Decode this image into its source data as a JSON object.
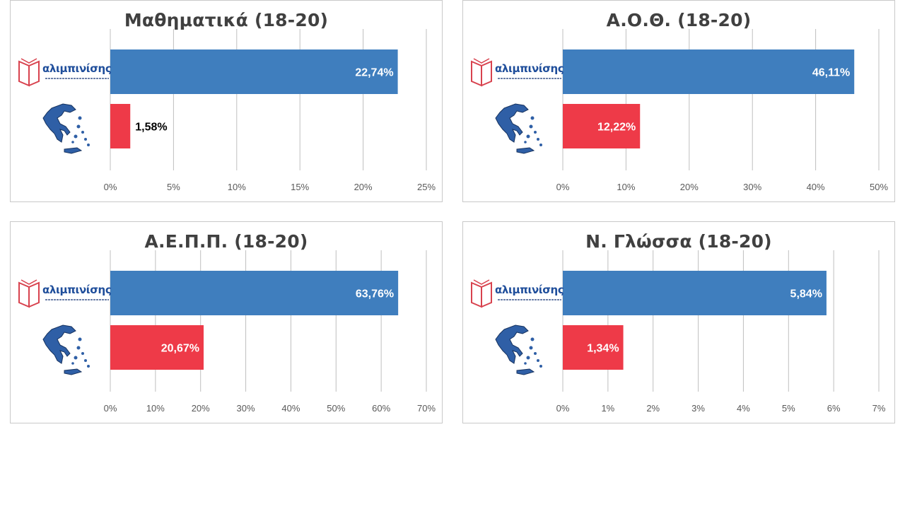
{
  "colors": {
    "school": "#3f7ebe",
    "national": "#ee3a48",
    "grid": "#bfbfbf",
    "axis_text": "#595959"
  },
  "icons": {
    "brand_logo": "book-logo-icon",
    "country_map": "greece-map-icon"
  },
  "brand_name": "αλιμπινίσης",
  "chart_data": [
    {
      "type": "bar",
      "orientation": "horizontal",
      "title": "Μαθηματικά (18-20)",
      "series": [
        {
          "values": [
            22.74
          ],
          "label": "22,74%",
          "color": "#3f7ebe"
        },
        {
          "values": [
            1.58
          ],
          "label": "1,58%",
          "color": "#ee3a48"
        }
      ],
      "xlim": [
        0,
        25
      ],
      "ticks": [
        "0%",
        "5%",
        "10%",
        "15%",
        "20%",
        "25%"
      ],
      "grid": true,
      "legend": "none"
    },
    {
      "type": "bar",
      "orientation": "horizontal",
      "title": "Α.Ο.Θ. (18-20)",
      "series": [
        {
          "values": [
            46.11
          ],
          "label": "46,11%",
          "color": "#3f7ebe"
        },
        {
          "values": [
            12.22
          ],
          "label": "12,22%",
          "color": "#ee3a48"
        }
      ],
      "xlim": [
        0,
        50
      ],
      "ticks": [
        "0%",
        "10%",
        "20%",
        "30%",
        "40%",
        "50%"
      ],
      "grid": true,
      "legend": "none"
    },
    {
      "type": "bar",
      "orientation": "horizontal",
      "title": "Α.Ε.Π.Π. (18-20)",
      "series": [
        {
          "values": [
            63.76
          ],
          "label": "63,76%",
          "color": "#3f7ebe"
        },
        {
          "values": [
            20.67
          ],
          "label": "20,67%",
          "color": "#ee3a48"
        }
      ],
      "xlim": [
        0,
        70
      ],
      "ticks": [
        "0%",
        "10%",
        "20%",
        "30%",
        "40%",
        "50%",
        "60%",
        "70%"
      ],
      "grid": true,
      "legend": "none"
    },
    {
      "type": "bar",
      "orientation": "horizontal",
      "title": "Ν. Γλώσσα (18-20)",
      "series": [
        {
          "values": [
            5.84
          ],
          "label": "5,84%",
          "color": "#3f7ebe"
        },
        {
          "values": [
            1.34
          ],
          "label": "1,34%",
          "color": "#ee3a48"
        }
      ],
      "xlim": [
        0,
        7
      ],
      "ticks": [
        "0%",
        "1%",
        "2%",
        "3%",
        "4%",
        "5%",
        "6%",
        "7%"
      ],
      "grid": true,
      "legend": "none"
    }
  ]
}
